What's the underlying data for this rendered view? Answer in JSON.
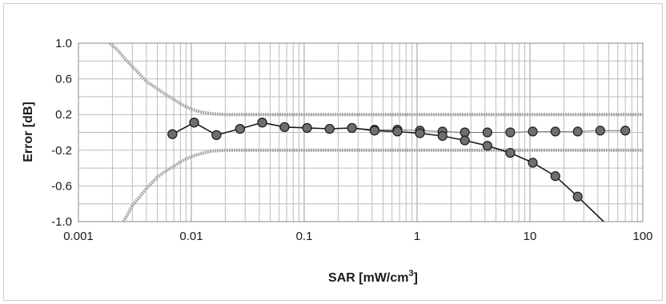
{
  "chart_data": {
    "type": "scatter",
    "title": "",
    "xlabel": "SAR [mW/cm",
    "xlabel_sup": "3",
    "xlabel_suffix": "]",
    "ylabel": "Error [dB]",
    "xscale": "log",
    "xlim": [
      0.001,
      100
    ],
    "ylim": [
      -1.0,
      1.0
    ],
    "x_ticks": [
      {
        "value": 0.001,
        "label": "0.001"
      },
      {
        "value": 0.01,
        "label": "0.01"
      },
      {
        "value": 0.1,
        "label": "0.1"
      },
      {
        "value": 1,
        "label": "1"
      },
      {
        "value": 10,
        "label": "10"
      },
      {
        "value": 100,
        "label": "100"
      }
    ],
    "y_ticks": [
      {
        "value": 1.0,
        "label": "1.0"
      },
      {
        "value": 0.6,
        "label": "0.6"
      },
      {
        "value": 0.2,
        "label": "0.2"
      },
      {
        "value": -0.2,
        "label": "-0.2"
      },
      {
        "value": -0.6,
        "label": "-0.6"
      },
      {
        "value": -1.0,
        "label": "-1.0"
      }
    ],
    "grid": true,
    "legend": "none",
    "colors": {
      "limit": "#a8a8a8",
      "marker_fill": "#6e6e6e",
      "marker_edge": "#1c1c1c",
      "line": "#1c1c1c",
      "grid": "#bcbcbc"
    },
    "series": [
      {
        "style": "markers",
        "x": [
          0.0068,
          0.0106,
          0.0167,
          0.027,
          0.0425,
          0.067,
          0.106,
          0.168,
          0.265,
          0.42,
          0.67,
          1.06,
          1.68,
          2.65,
          4.2,
          6.7,
          10.6,
          16.8,
          26.5,
          42,
          70
        ],
        "y": [
          -0.02,
          0.11,
          -0.03,
          0.04,
          0.11,
          0.06,
          0.05,
          0.04,
          0.05,
          0.03,
          0.03,
          0.02,
          0.01,
          0.0,
          0.0,
          0.0,
          0.01,
          0.01,
          0.01,
          0.02,
          0.02
        ]
      },
      {
        "style": "line+markers",
        "x": [
          0.0068,
          0.0106,
          0.0167,
          0.027,
          0.0425,
          0.067,
          0.106,
          0.168,
          0.265,
          0.42,
          0.67,
          1.06,
          1.68,
          2.65,
          4.2,
          6.7,
          10.6,
          16.8,
          26.5,
          45
        ],
        "y": [
          -0.02,
          0.11,
          -0.03,
          0.04,
          0.11,
          0.06,
          0.05,
          0.04,
          0.05,
          0.02,
          0.01,
          -0.01,
          -0.04,
          -0.09,
          -0.15,
          -0.23,
          -0.34,
          -0.49,
          -0.72,
          -1.05
        ]
      },
      {
        "style": "limit-upper",
        "x": [
          0.0019,
          0.0022,
          0.0026,
          0.003,
          0.0035,
          0.004,
          0.005,
          0.006,
          0.007,
          0.008,
          0.009,
          0.01,
          0.012,
          0.015,
          0.02,
          0.05,
          0.1,
          1,
          10,
          100
        ],
        "y": [
          1.05,
          0.93,
          0.82,
          0.74,
          0.65,
          0.57,
          0.49,
          0.42,
          0.37,
          0.32,
          0.29,
          0.26,
          0.23,
          0.21,
          0.2,
          0.2,
          0.2,
          0.2,
          0.2,
          0.2
        ]
      },
      {
        "style": "limit-lower",
        "x": [
          0.0025,
          0.0027,
          0.003,
          0.0035,
          0.004,
          0.005,
          0.006,
          0.007,
          0.008,
          0.009,
          0.01,
          0.012,
          0.015,
          0.02,
          0.05,
          0.1,
          1,
          10,
          100
        ],
        "y": [
          -1.05,
          -0.93,
          -0.82,
          -0.72,
          -0.63,
          -0.5,
          -0.43,
          -0.38,
          -0.33,
          -0.3,
          -0.27,
          -0.24,
          -0.21,
          -0.2,
          -0.2,
          -0.2,
          -0.2,
          -0.2,
          -0.2
        ]
      }
    ]
  }
}
